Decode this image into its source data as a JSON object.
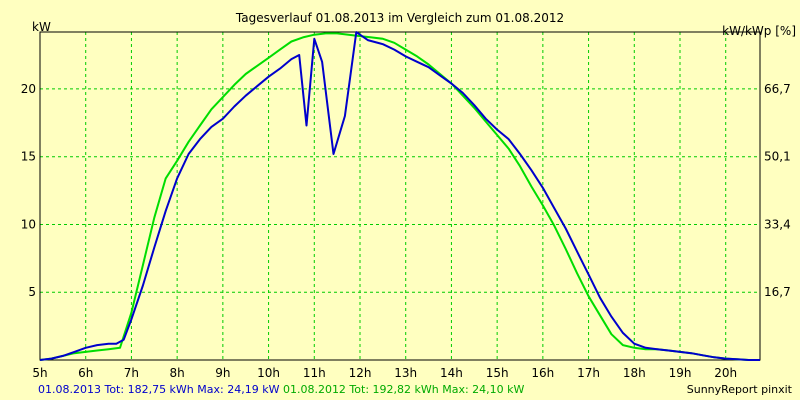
{
  "chart_data": {
    "type": "line",
    "title": "Tagesverlauf 01.08.2013 im Vergleich zum 01.08.2012",
    "ylabel_left": "kW",
    "ylabel_right": "kW/kWp [%]",
    "xlim": [
      5,
      20.75
    ],
    "ylim": [
      0,
      24.2
    ],
    "x_ticks": [
      5,
      6,
      7,
      8,
      9,
      10,
      11,
      12,
      13,
      14,
      15,
      16,
      17,
      18,
      19,
      20
    ],
    "x_tick_labels": [
      "5h",
      "6h",
      "7h",
      "8h",
      "9h",
      "10h",
      "11h",
      "12h",
      "13h",
      "14h",
      "15h",
      "16h",
      "17h",
      "18h",
      "19h",
      "20h"
    ],
    "y_ticks": [
      5,
      10,
      15,
      20
    ],
    "y_tick_labels": [
      "5",
      "10",
      "15",
      "20"
    ],
    "y_right_tick_labels": [
      "16,7",
      "33,4",
      "50,1",
      "66,7"
    ],
    "grid": true,
    "colors": {
      "background": "#ffffc0",
      "grid": "#00cc00",
      "frame": "#000000"
    },
    "series": [
      {
        "name": "01.08.2013",
        "color": "#0000cc",
        "x": [
          5.0,
          5.25,
          5.5,
          5.75,
          6.0,
          6.25,
          6.5,
          6.67,
          6.83,
          7.0,
          7.25,
          7.5,
          7.75,
          8.0,
          8.25,
          8.5,
          8.75,
          9.0,
          9.25,
          9.5,
          9.75,
          10.0,
          10.25,
          10.5,
          10.67,
          10.83,
          11.0,
          11.17,
          11.42,
          11.67,
          11.92,
          12.0,
          12.17,
          12.5,
          12.75,
          13.0,
          13.25,
          13.5,
          13.75,
          14.0,
          14.25,
          14.5,
          14.75,
          15.0,
          15.25,
          15.5,
          15.75,
          16.0,
          16.25,
          16.5,
          16.75,
          17.0,
          17.25,
          17.5,
          17.75,
          18.0,
          18.25,
          18.5,
          18.75,
          19.0,
          19.25,
          19.5,
          19.75,
          20.0,
          20.25,
          20.5,
          20.75
        ],
        "y": [
          0.0,
          0.1,
          0.3,
          0.6,
          0.9,
          1.1,
          1.2,
          1.2,
          1.5,
          3.0,
          5.5,
          8.3,
          11.0,
          13.4,
          15.2,
          16.3,
          17.2,
          17.8,
          18.7,
          19.5,
          20.2,
          20.9,
          21.5,
          22.2,
          22.5,
          17.3,
          23.7,
          22.0,
          15.2,
          18.0,
          24.19,
          24.0,
          23.6,
          23.3,
          22.9,
          22.4,
          22.0,
          21.6,
          21.0,
          20.4,
          19.7,
          18.8,
          17.8,
          17.0,
          16.3,
          15.2,
          14.0,
          12.7,
          11.2,
          9.7,
          8.0,
          6.3,
          4.6,
          3.2,
          2.0,
          1.2,
          0.9,
          0.8,
          0.7,
          0.6,
          0.5,
          0.35,
          0.2,
          0.1,
          0.05,
          0.0,
          0.0
        ]
      },
      {
        "name": "01.08.2012",
        "color": "#00dd00",
        "x": [
          5.0,
          5.25,
          5.5,
          5.75,
          6.0,
          6.25,
          6.5,
          6.75,
          7.0,
          7.25,
          7.5,
          7.75,
          8.0,
          8.25,
          8.5,
          8.75,
          9.0,
          9.25,
          9.5,
          9.75,
          10.0,
          10.25,
          10.5,
          10.75,
          11.0,
          11.25,
          11.5,
          11.75,
          12.0,
          12.25,
          12.5,
          12.75,
          13.0,
          13.25,
          13.5,
          13.75,
          14.0,
          14.25,
          14.5,
          14.75,
          15.0,
          15.25,
          15.5,
          15.75,
          16.0,
          16.25,
          16.5,
          16.75,
          17.0,
          17.25,
          17.5,
          17.75,
          18.0,
          18.25,
          18.5,
          18.75,
          19.0,
          19.25,
          19.5,
          19.75,
          20.0,
          20.25,
          20.5,
          20.75
        ],
        "y": [
          0.0,
          0.1,
          0.3,
          0.5,
          0.6,
          0.7,
          0.8,
          0.9,
          3.5,
          7.0,
          10.5,
          13.4,
          14.7,
          16.1,
          17.3,
          18.5,
          19.4,
          20.3,
          21.1,
          21.7,
          22.3,
          22.9,
          23.5,
          23.8,
          24.0,
          24.1,
          24.1,
          24.0,
          23.9,
          23.8,
          23.7,
          23.4,
          22.9,
          22.4,
          21.8,
          21.1,
          20.4,
          19.5,
          18.6,
          17.6,
          16.6,
          15.6,
          14.3,
          12.8,
          11.4,
          9.9,
          8.2,
          6.4,
          4.7,
          3.3,
          1.9,
          1.1,
          0.9,
          0.8,
          0.8,
          0.7,
          0.6,
          0.5,
          0.35,
          0.2,
          0.1,
          0.05,
          0.0,
          0.0
        ]
      }
    ]
  },
  "footer": {
    "series1_text": "01.08.2013 Tot: 182,75 kWh Max: 24,19 kW",
    "series2_text": "01.08.2012 Tot: 192,82 kWh Max: 24,10 kW",
    "credit": "SunnyReport pinxit"
  }
}
